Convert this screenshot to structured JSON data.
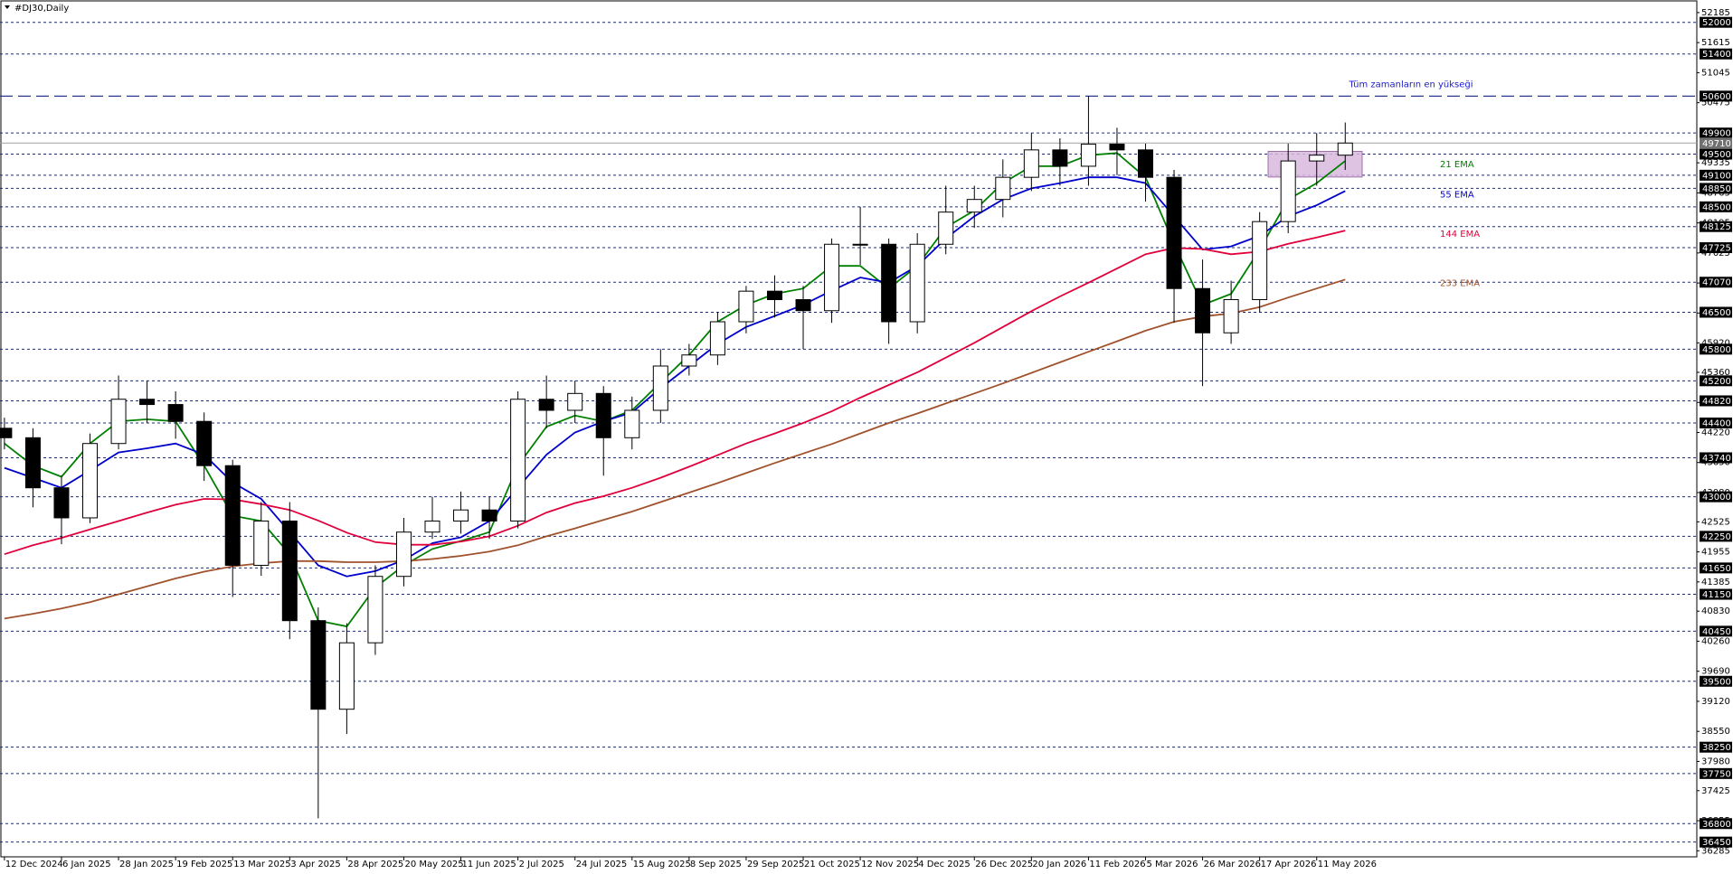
{
  "chart_data": {
    "type": "candlestick",
    "title": "#DJ30,Daily",
    "categories": [
      "12 Dec 2024",
      null,
      "6 Jan 2025",
      null,
      "28 Jan 2025",
      null,
      "19 Feb 2025",
      null,
      "13 Mar 2025",
      null,
      "3 Apr 2025",
      null,
      "28 Apr 2025",
      null,
      "20 May 2025",
      null,
      "11 Jun 2025",
      null,
      "2 Jul 2025",
      null,
      "24 Jul 2025",
      null,
      "15 Aug 2025",
      null,
      "8 Sep 2025",
      null,
      "29 Sep 2025",
      null,
      "21 Oct 2025",
      null,
      "12 Nov 2025",
      null,
      "4 Dec 2025",
      null,
      "26 Dec 2025",
      null,
      "20 Jan 2026",
      null,
      "11 Feb 2026",
      null,
      "5 Mar 2026",
      null,
      "26 Mar 2026",
      null,
      "17 Apr 2026",
      null,
      "11 May 2026",
      null
    ],
    "open": [
      44300,
      44120,
      43170,
      42600,
      44010,
      44850,
      44750,
      44430,
      43590,
      41700,
      42540,
      40650,
      38970,
      40230,
      41490,
      42330,
      42540,
      42750,
      42540,
      44850,
      44640,
      44960,
      44120,
      44640,
      45480,
      45690,
      46320,
      46900,
      46740,
      46530,
      47790,
      47790,
      46320,
      47790,
      48400,
      48640,
      49060,
      49580,
      49270,
      49690,
      49580,
      49060,
      46950,
      46110,
      46740,
      48220,
      49370,
      49480
    ],
    "high": [
      44500,
      44300,
      43400,
      44200,
      45300,
      45200,
      45000,
      44600,
      43700,
      42900,
      42900,
      40900,
      40600,
      41700,
      42600,
      43000,
      43100,
      43000,
      45000,
      45300,
      45200,
      45100,
      44900,
      45800,
      45900,
      46500,
      47000,
      47200,
      47000,
      47900,
      48500,
      47900,
      48000,
      48900,
      48900,
      49400,
      49900,
      49800,
      50600,
      50000,
      49700,
      49200,
      47500,
      47100,
      48400,
      49700,
      49900,
      50100
    ],
    "low": [
      43900,
      42800,
      42100,
      42500,
      43900,
      44400,
      44100,
      43300,
      41100,
      41500,
      40300,
      36900,
      38500,
      40000,
      41300,
      42200,
      42300,
      42200,
      42400,
      44300,
      44400,
      43400,
      43900,
      44400,
      45300,
      45500,
      46100,
      46400,
      45800,
      46300,
      47400,
      45900,
      46100,
      47600,
      48100,
      48300,
      48800,
      48900,
      48900,
      49100,
      48600,
      46300,
      45100,
      45900,
      46500,
      48000,
      48900,
      49200
    ],
    "close": [
      44120,
      43170,
      42600,
      44010,
      44850,
      44750,
      44430,
      43590,
      41700,
      42540,
      40650,
      38970,
      40230,
      41490,
      42330,
      42540,
      42750,
      42540,
      44850,
      44640,
      44960,
      44120,
      44640,
      45480,
      45690,
      46320,
      46900,
      46740,
      46530,
      47790,
      47790,
      46320,
      47790,
      48400,
      48640,
      49060,
      49580,
      49270,
      49690,
      49580,
      49060,
      46950,
      46110,
      46740,
      48220,
      49370,
      49480,
      49710
    ],
    "series": [
      {
        "name": "21 EMA",
        "color": "#008000",
        "values": [
          44010,
          43590,
          43380,
          44010,
          44430,
          44470,
          44430,
          43590,
          42640,
          42540,
          41910,
          40650,
          40540,
          41280,
          41700,
          42010,
          42160,
          42330,
          43590,
          44330,
          44540,
          44430,
          44640,
          45170,
          45690,
          46320,
          46640,
          46850,
          46950,
          47380,
          47380,
          46950,
          47380,
          48110,
          48430,
          48950,
          49270,
          49270,
          49480,
          49520,
          49060,
          47800,
          46640,
          46850,
          47690,
          48640,
          48950,
          49370
        ]
      },
      {
        "name": "55 EMA",
        "color": "#0000cc",
        "values": [
          43550,
          43360,
          43170,
          43500,
          43840,
          43920,
          44010,
          43800,
          43270,
          42960,
          42330,
          41700,
          41490,
          41590,
          41800,
          42120,
          42230,
          42540,
          43170,
          43800,
          44220,
          44430,
          44600,
          45060,
          45480,
          45900,
          46220,
          46430,
          46640,
          46910,
          47160,
          47060,
          47380,
          47900,
          48320,
          48640,
          48850,
          48950,
          49060,
          49060,
          48950,
          48320,
          47690,
          47750,
          47950,
          48320,
          48530,
          48800
        ]
      },
      {
        "name": "144 EMA",
        "color": "#e0003c",
        "values": [
          41910,
          42080,
          42220,
          42380,
          42540,
          42700,
          42850,
          42960,
          42950,
          42860,
          42750,
          42550,
          42320,
          42140,
          42090,
          42090,
          42150,
          42250,
          42450,
          42700,
          42880,
          43010,
          43170,
          43360,
          43570,
          43790,
          44010,
          44200,
          44400,
          44620,
          44880,
          45120,
          45360,
          45640,
          45920,
          46220,
          46520,
          46800,
          47060,
          47330,
          47600,
          47720,
          47700,
          47600,
          47650,
          47800,
          47920,
          48050
        ]
      },
      {
        "name": "233 EMA",
        "color": "#a0522d",
        "values": [
          40690,
          40780,
          40880,
          41000,
          41150,
          41300,
          41450,
          41580,
          41680,
          41740,
          41780,
          41780,
          41760,
          41760,
          41780,
          41820,
          41880,
          41960,
          42080,
          42250,
          42400,
          42560,
          42720,
          42900,
          43080,
          43260,
          43450,
          43640,
          43820,
          44000,
          44200,
          44400,
          44580,
          44770,
          44960,
          45150,
          45350,
          45550,
          45750,
          45950,
          46150,
          46320,
          46420,
          46480,
          46600,
          46780,
          46950,
          47120
        ]
      }
    ],
    "ylim": [
      36170,
      52252
    ],
    "yticks": [
      52185,
      51615,
      51045,
      50475,
      49335,
      48765,
      48195,
      47625,
      47055,
      46485,
      45920,
      45360,
      44790,
      44220,
      43650,
      43080,
      42525,
      41955,
      41385,
      40830,
      40260,
      39690,
      39120,
      38550,
      37980,
      37425,
      36855,
      36285
    ],
    "levels": [
      52000,
      51400,
      49900,
      49500,
      49100,
      48850,
      48500,
      48125,
      47725,
      47070,
      46500,
      45800,
      45200,
      44820,
      44400,
      43740,
      43000,
      42250,
      41650,
      41150,
      40450,
      39500,
      38250,
      37750,
      36800,
      36450
    ],
    "ath": {
      "label": "Tüm zamanların en yükseği",
      "value": 50600
    },
    "current_price": 49710,
    "zone": [
      49500,
      49100
    ]
  }
}
